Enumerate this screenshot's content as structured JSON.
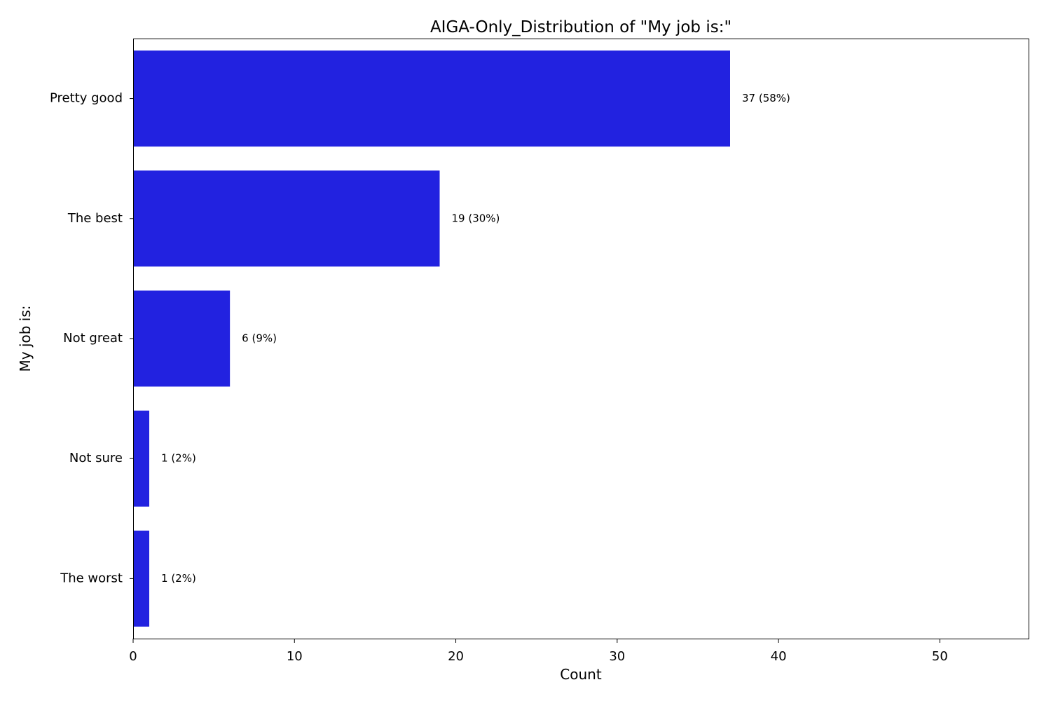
{
  "chart_data": {
    "type": "bar",
    "orientation": "horizontal",
    "title": "AIGA-Only_Distribution of \"My job is:\"",
    "xlabel": "Count",
    "ylabel": "My job is:",
    "categories": [
      "Pretty good",
      "The best",
      "Not great",
      "Not sure",
      "The worst"
    ],
    "values": [
      37,
      19,
      6,
      1,
      1
    ],
    "data_labels": [
      "37 (58%)",
      "19 (30%)",
      "6 (9%)",
      "1 (2%)",
      "1 (2%)"
    ],
    "xlim": [
      0,
      55.5
    ],
    "xticks": [
      0,
      10,
      20,
      30,
      40,
      50
    ],
    "grid": false,
    "bar_color": "#2222e0"
  }
}
